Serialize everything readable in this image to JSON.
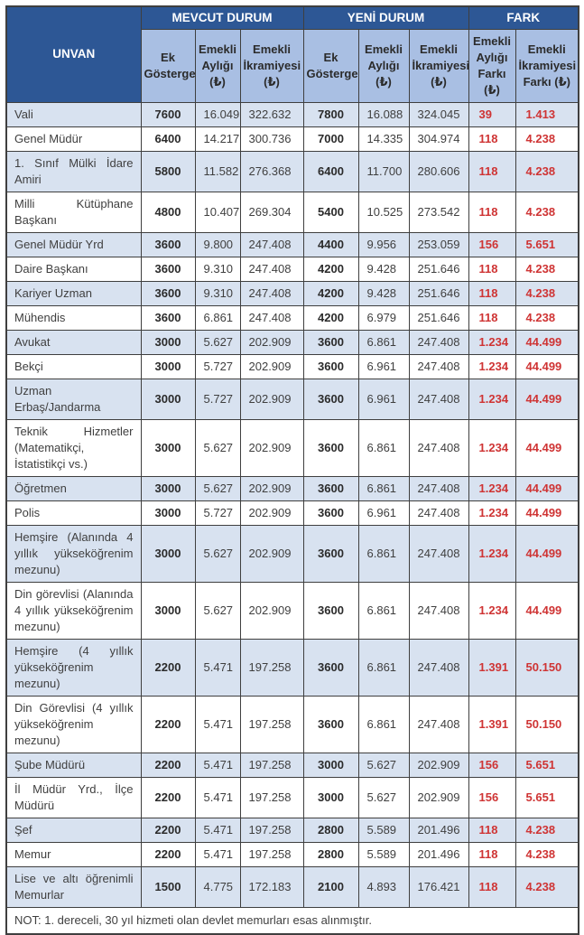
{
  "colors": {
    "header_blue": "#2d5795",
    "subheader_blue": "#a9bfe3",
    "row_shade": "#d8e2f0",
    "border": "#3f3f3f",
    "text": "#3f3f3f",
    "red": "#cf3434"
  },
  "table": {
    "header": {
      "unvan": "UNVAN",
      "groups": [
        {
          "label": "MEVCUT DURUM",
          "colspan": 3
        },
        {
          "label": "YENİ DURUM",
          "colspan": 3
        },
        {
          "label": "FARK",
          "colspan": 2
        }
      ],
      "subheaders": [
        "Ek Gösterge",
        "Emekli Aylığı (₺)",
        "Emekli İkramiyesi (₺)",
        "Ek Gösterge",
        "Emekli Aylığı (₺)",
        "Emekli İkramiyesi (₺)",
        "Emekli Aylığı Farkı (₺)",
        "Emekli İkramiyesi Farkı (₺)"
      ]
    },
    "rows": [
      {
        "unvan": "Vali",
        "cells": [
          "7600",
          "16.049",
          "322.632",
          "7800",
          "16.088",
          "324.045",
          "39",
          "1.413"
        ]
      },
      {
        "unvan": "Genel Müdür",
        "cells": [
          "6400",
          "14.217",
          "300.736",
          "7000",
          "14.335",
          "304.974",
          "118",
          "4.238"
        ]
      },
      {
        "unvan": "1. Sınıf Mülki İdare Amiri",
        "cells": [
          "5800",
          "11.582",
          "276.368",
          "6400",
          "11.700",
          "280.606",
          "118",
          "4.238"
        ]
      },
      {
        "unvan": "Milli Kütüphane Başkanı",
        "cells": [
          "4800",
          "10.407",
          "269.304",
          "5400",
          "10.525",
          "273.542",
          "118",
          "4.238"
        ]
      },
      {
        "unvan": "Genel Müdür Yrd",
        "cells": [
          "3600",
          "9.800",
          "247.408",
          "4400",
          "9.956",
          "253.059",
          "156",
          "5.651"
        ]
      },
      {
        "unvan": "Daire Başkanı",
        "cells": [
          "3600",
          "9.310",
          "247.408",
          "4200",
          "9.428",
          "251.646",
          "118",
          "4.238"
        ]
      },
      {
        "unvan": "Kariyer Uzman",
        "cells": [
          "3600",
          "9.310",
          "247.408",
          "4200",
          "9.428",
          "251.646",
          "118",
          "4.238"
        ]
      },
      {
        "unvan": "Mühendis",
        "cells": [
          "3600",
          "6.861",
          "247.408",
          "4200",
          "6.979",
          "251.646",
          "118",
          "4.238"
        ]
      },
      {
        "unvan": "Avukat",
        "cells": [
          "3000",
          "5.627",
          "202.909",
          "3600",
          "6.861",
          "247.408",
          "1.234",
          "44.499"
        ]
      },
      {
        "unvan": "Bekçi",
        "cells": [
          "3000",
          "5.727",
          "202.909",
          "3600",
          "6.961",
          "247.408",
          "1.234",
          "44.499"
        ]
      },
      {
        "unvan": "Uzman Erbaş/Jandarma",
        "cells": [
          "3000",
          "5.727",
          "202.909",
          "3600",
          "6.961",
          "247.408",
          "1.234",
          "44.499"
        ]
      },
      {
        "unvan": "Teknik Hizmetler (Matematikçi, İstatistikçi vs.)",
        "cells": [
          "3000",
          "5.627",
          "202.909",
          "3600",
          "6.861",
          "247.408",
          "1.234",
          "44.499"
        ]
      },
      {
        "unvan": "Öğretmen",
        "cells": [
          "3000",
          "5.627",
          "202.909",
          "3600",
          "6.861",
          "247.408",
          "1.234",
          "44.499"
        ]
      },
      {
        "unvan": "Polis",
        "cells": [
          "3000",
          "5.727",
          "202.909",
          "3600",
          "6.961",
          "247.408",
          "1.234",
          "44.499"
        ]
      },
      {
        "unvan": "Hemşire (Alanında 4 yıllık yükseköğrenim mezunu)",
        "cells": [
          "3000",
          "5.627",
          "202.909",
          "3600",
          "6.861",
          "247.408",
          "1.234",
          "44.499"
        ]
      },
      {
        "unvan": "Din görevlisi (Alanında 4 yıllık yükseköğrenim mezunu)",
        "cells": [
          "3000",
          "5.627",
          "202.909",
          "3600",
          "6.861",
          "247.408",
          "1.234",
          "44.499"
        ]
      },
      {
        "unvan": "Hemşire (4 yıllık yükseköğrenim mezunu)",
        "cells": [
          "2200",
          "5.471",
          "197.258",
          "3600",
          "6.861",
          "247.408",
          "1.391",
          "50.150"
        ]
      },
      {
        "unvan": "Din Görevlisi (4 yıllık yükseköğrenim mezunu)",
        "cells": [
          "2200",
          "5.471",
          "197.258",
          "3600",
          "6.861",
          "247.408",
          "1.391",
          "50.150"
        ]
      },
      {
        "unvan": "Şube Müdürü",
        "cells": [
          "2200",
          "5.471",
          "197.258",
          "3000",
          "5.627",
          "202.909",
          "156",
          "5.651"
        ]
      },
      {
        "unvan": "İl Müdür Yrd., İlçe Müdürü",
        "cells": [
          "2200",
          "5.471",
          "197.258",
          "3000",
          "5.627",
          "202.909",
          "156",
          "5.651"
        ]
      },
      {
        "unvan": "Şef",
        "cells": [
          "2200",
          "5.471",
          "197.258",
          "2800",
          "5.589",
          "201.496",
          "118",
          "4.238"
        ]
      },
      {
        "unvan": "Memur",
        "cells": [
          "2200",
          "5.471",
          "197.258",
          "2800",
          "5.589",
          "201.496",
          "118",
          "4.238"
        ]
      },
      {
        "unvan": "Lise ve altı öğrenimli Memurlar",
        "cells": [
          "1500",
          "4.775",
          "172.183",
          "2100",
          "4.893",
          "176.421",
          "118",
          "4.238"
        ]
      }
    ],
    "note": "NOT: 1. dereceli, 30 yıl hizmeti olan devlet memurları esas alınmıştır."
  }
}
